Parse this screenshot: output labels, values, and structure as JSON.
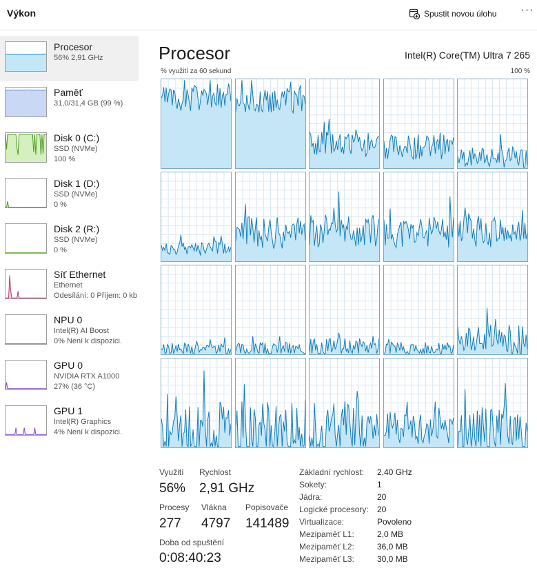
{
  "header": {
    "title": "Výkon",
    "new_task_label": "Spustit novou úlohu",
    "more_label": "···"
  },
  "sidebar": {
    "items": [
      {
        "name": "Procesor",
        "line1": "56% 2,91 GHz",
        "line2": "",
        "color": "#1b8ec7",
        "fill": "#c4e7f6",
        "level": 0.56,
        "kind": "flat",
        "selected": true
      },
      {
        "name": "Paměť",
        "line1": "31,0/31,4 GB (99 %)",
        "line2": "",
        "color": "#6a8ed8",
        "fill": "#c9d8f5",
        "level": 0.99,
        "kind": "flat",
        "selected": false
      },
      {
        "name": "Disk 0 (C:)",
        "line1": "SSD (NVMe)",
        "line2": "100 %",
        "color": "#4d9a1f",
        "fill": "#d4f0bf",
        "level": 1.0,
        "kind": "disk",
        "selected": false
      },
      {
        "name": "Disk 1 (D:)",
        "line1": "SSD (NVMe)",
        "line2": "0 %",
        "color": "#4d9a1f",
        "fill": "#d4f0bf",
        "level": 0,
        "kind": "spike",
        "selected": false
      },
      {
        "name": "Disk 2 (R:)",
        "line1": "SSD (NVMe)",
        "line2": "0 %",
        "color": "#4d9a1f",
        "fill": "#d4f0bf",
        "level": 0,
        "kind": "empty",
        "selected": false
      },
      {
        "name": "Síť Ethernet",
        "line1": "Ethernet",
        "line2": "Odesílání: 0 Příjem: 0 kb",
        "color": "#b5376b",
        "fill": "#f3d4e1",
        "level": 0,
        "kind": "net",
        "selected": false
      },
      {
        "name": "NPU 0",
        "line1": "Intel(R) AI Boost",
        "line2": "0%  Není k dispozici.",
        "color": "#8b49c9",
        "fill": "#e6d8f4",
        "level": 0,
        "kind": "empty",
        "selected": false
      },
      {
        "name": "GPU 0",
        "line1": "NVIDIA RTX A1000",
        "line2": "27%  (36 °C)",
        "color": "#8b49c9",
        "fill": "#e6d8f4",
        "level": 0.27,
        "kind": "gpu0",
        "selected": false
      },
      {
        "name": "GPU 1",
        "line1": "Intel(R) Graphics",
        "line2": "4%  Není k dispozici.",
        "color": "#8b49c9",
        "fill": "#e6d8f4",
        "level": 0.04,
        "kind": "gpu1",
        "selected": false
      }
    ]
  },
  "main": {
    "title": "Procesor",
    "cpu_model": "Intel(R) Core(TM) Ultra 7 265",
    "util_label": "% využití za 60 sekund",
    "util_max": "100 %",
    "graph_color": "#117dbb",
    "graph_fill": "#c4e6f6",
    "grid_color": "#d9e8f1",
    "cores": [
      {
        "base": 0.78,
        "var": 0.14
      },
      {
        "base": 0.76,
        "var": 0.14
      },
      {
        "base": 0.28,
        "var": 0.16
      },
      {
        "base": 0.24,
        "var": 0.14
      },
      {
        "base": 0.12,
        "var": 0.12
      },
      {
        "base": 0.14,
        "var": 0.08
      },
      {
        "base": 0.32,
        "var": 0.18
      },
      {
        "base": 0.36,
        "var": 0.2
      },
      {
        "base": 0.32,
        "var": 0.18
      },
      {
        "base": 0.34,
        "var": 0.18
      },
      {
        "base": 0.05,
        "var": 0.08
      },
      {
        "base": 0.05,
        "var": 0.08
      },
      {
        "base": 0.08,
        "var": 0.1
      },
      {
        "base": 0.06,
        "var": 0.08
      },
      {
        "base": 0.16,
        "var": 0.18
      },
      {
        "base": 0.16,
        "var": 0.32
      },
      {
        "base": 0.18,
        "var": 0.36
      },
      {
        "base": 0.18,
        "var": 0.34
      },
      {
        "base": 0.22,
        "var": 0.18
      },
      {
        "base": 0.2,
        "var": 0.26
      }
    ]
  },
  "stats": {
    "utilization_label": "Využití",
    "utilization_value": "56%",
    "speed_label": "Rychlost",
    "speed_value": "2,91 GHz",
    "processes_label": "Procesy",
    "processes_value": "277",
    "threads_label": "Vlákna",
    "threads_value": "4797",
    "handles_label": "Popisovače",
    "handles_value": "141489",
    "uptime_label": "Doba od spuštění",
    "uptime_value": "0:08:40:23"
  },
  "specs": [
    {
      "key": "Základní rychlost:",
      "value": "2,40 GHz"
    },
    {
      "key": "Sokety:",
      "value": "1"
    },
    {
      "key": "Jádra:",
      "value": "20"
    },
    {
      "key": "Logické procesory:",
      "value": "20"
    },
    {
      "key": "Virtualizace:",
      "value": "Povoleno"
    },
    {
      "key": "Mezipaměť L1:",
      "value": "2,0 MB"
    },
    {
      "key": "Mezipaměť L2:",
      "value": "36,0 MB"
    },
    {
      "key": "Mezipaměť L3:",
      "value": "30,0 MB"
    }
  ]
}
